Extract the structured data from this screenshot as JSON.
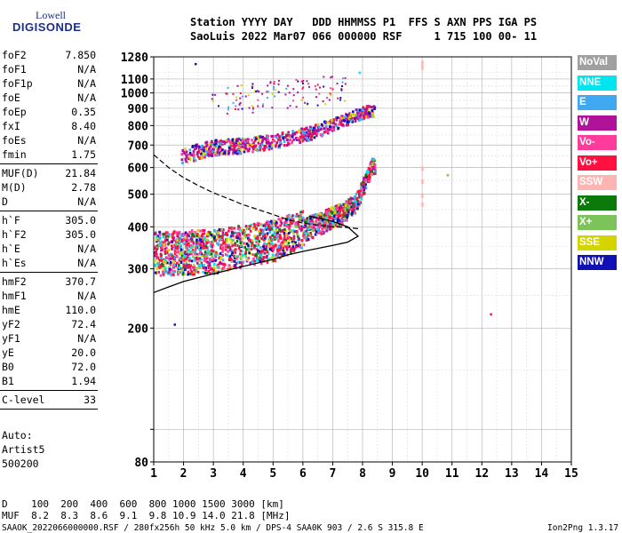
{
  "logo": {
    "line1": "Lowell",
    "line2": "DIGISONDE"
  },
  "header": {
    "row1": "Station YYYY DAY   DDD HHMMSS P1  FFS S AXN PPS IGA PS",
    "row2": "SaoLuis 2022 Mar07 066 000000 RSF     1 715 100 00- 11"
  },
  "params": [
    {
      "name": "foF2",
      "value": "7.850"
    },
    {
      "name": "foF1",
      "value": "N/A"
    },
    {
      "name": "foF1p",
      "value": "N/A"
    },
    {
      "name": "foE",
      "value": "N/A"
    },
    {
      "name": "foEp",
      "value": "0.35"
    },
    {
      "name": "fxI",
      "value": "8.40"
    },
    {
      "name": "foEs",
      "value": "N/A"
    },
    {
      "name": "fmin",
      "value": "1.75"
    },
    {
      "name": "MUF(D)",
      "value": "21.84"
    },
    {
      "name": "M(D)",
      "value": "2.78"
    },
    {
      "name": "D",
      "value": "N/A"
    },
    {
      "name": "h`F",
      "value": "305.0"
    },
    {
      "name": "h`F2",
      "value": "305.0"
    },
    {
      "name": "h`E",
      "value": "N/A"
    },
    {
      "name": "h`Es",
      "value": "N/A"
    },
    {
      "name": "hmF2",
      "value": "370.7"
    },
    {
      "name": "hmF1",
      "value": "N/A"
    },
    {
      "name": "hmE",
      "value": "110.0"
    },
    {
      "name": "yF2",
      "value": "72.4"
    },
    {
      "name": "yF1",
      "value": "N/A"
    },
    {
      "name": "yE",
      "value": "20.0"
    },
    {
      "name": "B0",
      "value": "72.0"
    },
    {
      "name": "B1",
      "value": "1.94"
    },
    {
      "name": "C-level",
      "value": "33"
    }
  ],
  "auto": [
    "Auto:",
    "Artist5",
    "500200"
  ],
  "legend": [
    {
      "label": "NoVal",
      "color": "#a0a0a0"
    },
    {
      "label": "NNE",
      "color": "#00e5f0"
    },
    {
      "label": "E",
      "color": "#3fa8f0"
    },
    {
      "label": "W",
      "color": "#b0129a"
    },
    {
      "label": "Vo-",
      "color": "#ff3c9c"
    },
    {
      "label": "Vo+",
      "color": "#ff1040"
    },
    {
      "label": "SSW",
      "color": "#ffb4b4"
    },
    {
      "label": "X-",
      "color": "#0a7a0a"
    },
    {
      "label": "X+",
      "color": "#7cc45a"
    },
    {
      "label": "SSE",
      "color": "#d4d400"
    },
    {
      "label": "NNW",
      "color": "#1010b4"
    }
  ],
  "chart_data": {
    "type": "scatter",
    "xlim": [
      1,
      15
    ],
    "x_ticks": [
      1,
      2,
      3,
      4,
      5,
      6,
      7,
      8,
      9,
      10,
      11,
      12,
      13,
      14,
      15
    ],
    "y_scale": "log",
    "ylim": [
      80,
      1280
    ],
    "y_ticks": [
      80,
      100,
      200,
      300,
      400,
      500,
      600,
      700,
      800,
      900,
      1000,
      1100,
      1280
    ],
    "y_tick_labels": [
      "80",
      "",
      "200",
      "300",
      "400",
      "500",
      "600",
      "700",
      "800",
      "900",
      "1000",
      "1100",
      "1280"
    ],
    "grid": true,
    "echo_regions": [
      {
        "name": "F2 trace",
        "series": "Vo+",
        "x_range": [
          1.0,
          8.4
        ],
        "h_base": [
          [
            1.0,
            320
          ],
          [
            3,
            325
          ],
          [
            5,
            350
          ],
          [
            6.5,
            400
          ],
          [
            7.3,
            430
          ],
          [
            7.8,
            470
          ],
          [
            8.0,
            520
          ],
          [
            8.3,
            600
          ]
        ],
        "h_spread": 40
      },
      {
        "name": "second-hop trace",
        "series": "W",
        "x_range": [
          1.9,
          8.4
        ],
        "h_base": [
          [
            1.9,
            640
          ],
          [
            3,
            680
          ],
          [
            4,
            690
          ],
          [
            5,
            710
          ],
          [
            6.2,
            750
          ],
          [
            7,
            800
          ],
          [
            7.6,
            840
          ],
          [
            8.2,
            880
          ]
        ],
        "h_spread": 45
      }
    ],
    "profile_dashed": [
      [
        1.0,
        655
      ],
      [
        1.5,
        600
      ],
      [
        2.0,
        560
      ],
      [
        2.5,
        530
      ],
      [
        3.0,
        505
      ],
      [
        3.5,
        485
      ],
      [
        4.0,
        465
      ],
      [
        4.5,
        450
      ],
      [
        5.0,
        435
      ],
      [
        5.5,
        420
      ],
      [
        6.0,
        410
      ],
      [
        6.5,
        405
      ],
      [
        7.0,
        400
      ],
      [
        7.5,
        398
      ],
      [
        7.85,
        395
      ]
    ],
    "profile_solid": [
      [
        1.0,
        255
      ],
      [
        1.5,
        265
      ],
      [
        2.0,
        275
      ],
      [
        3.0,
        290
      ],
      [
        4.0,
        305
      ],
      [
        5.0,
        320
      ],
      [
        5.5,
        330
      ],
      [
        6.0,
        338
      ],
      [
        6.5,
        345
      ],
      [
        7.0,
        352
      ],
      [
        7.5,
        360
      ],
      [
        7.85,
        375
      ],
      [
        7.5,
        400
      ],
      [
        7.0,
        415
      ],
      [
        6.5,
        425
      ],
      [
        6.2,
        430
      ]
    ],
    "outliers": [
      {
        "x": 2.4,
        "y": 1220,
        "series": "NNW"
      },
      {
        "x": 7.9,
        "y": 1150,
        "series": "NNE"
      },
      {
        "x": 10.85,
        "y": 570,
        "series": "X+"
      },
      {
        "x": 12.3,
        "y": 220,
        "series": "Vo+"
      },
      {
        "x": 1.7,
        "y": 205,
        "series": "NNW"
      },
      {
        "x": 10.0,
        "y": 1240,
        "series": "SSW"
      },
      {
        "x": 10.0,
        "y": 1200,
        "series": "SSW"
      },
      {
        "x": 10.0,
        "y": 600,
        "series": "SSW"
      },
      {
        "x": 10.0,
        "y": 550,
        "series": "SSW"
      },
      {
        "x": 10.0,
        "y": 500,
        "series": "SSW"
      },
      {
        "x": 10.0,
        "y": 470,
        "series": "SSW"
      }
    ]
  },
  "footer": {
    "d_row": "D    100  200  400  600  800 1000 1500 3000 [km]",
    "muf_row": "MUF  8.2  8.3  8.6  9.1  9.8 10.9 14.0 21.8 [MHz]",
    "file_line": "SAAOK_2022066000000.RSF / 280fx256h 50 kHz 5.0 km / DPS-4 SAA0K 903 / 2.6 S 315.8 E",
    "version": "Ion2Png 1.3.17"
  }
}
